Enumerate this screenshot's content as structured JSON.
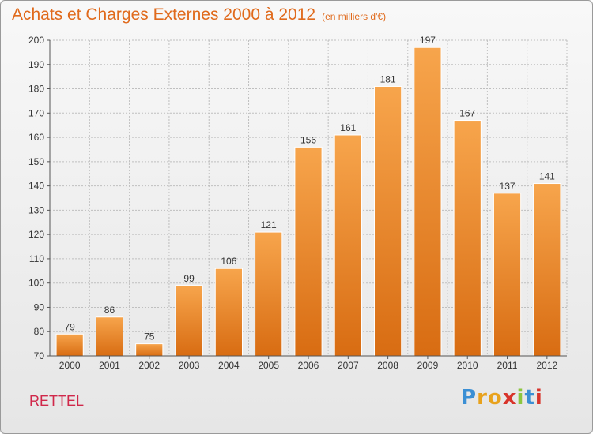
{
  "header": {
    "title": "Achats et Charges Externes 2000 à 2012",
    "unit": "(en milliers d'€)"
  },
  "footer": {
    "commune": "RETTEL",
    "logo": "Proxiti"
  },
  "colors": {
    "bar_top": "#f7a54c",
    "bar_bottom": "#d86c12",
    "title": "#e06a1c",
    "commune": "#d0284a",
    "grid": "#bfbfbf"
  },
  "chart_data": {
    "type": "bar",
    "categories": [
      "2000",
      "2001",
      "2002",
      "2003",
      "2004",
      "2005",
      "2006",
      "2007",
      "2008",
      "2009",
      "2010",
      "2011",
      "2012"
    ],
    "values": [
      79,
      86,
      75,
      99,
      106,
      121,
      156,
      161,
      181,
      197,
      167,
      137,
      141
    ],
    "title": "Achats et Charges Externes 2000 à 2012",
    "ylabel": "",
    "xlabel": "",
    "ylim": [
      70,
      200
    ],
    "yticks": [
      70,
      80,
      90,
      100,
      110,
      120,
      130,
      140,
      150,
      160,
      170,
      180,
      190,
      200
    ],
    "grid": true
  }
}
